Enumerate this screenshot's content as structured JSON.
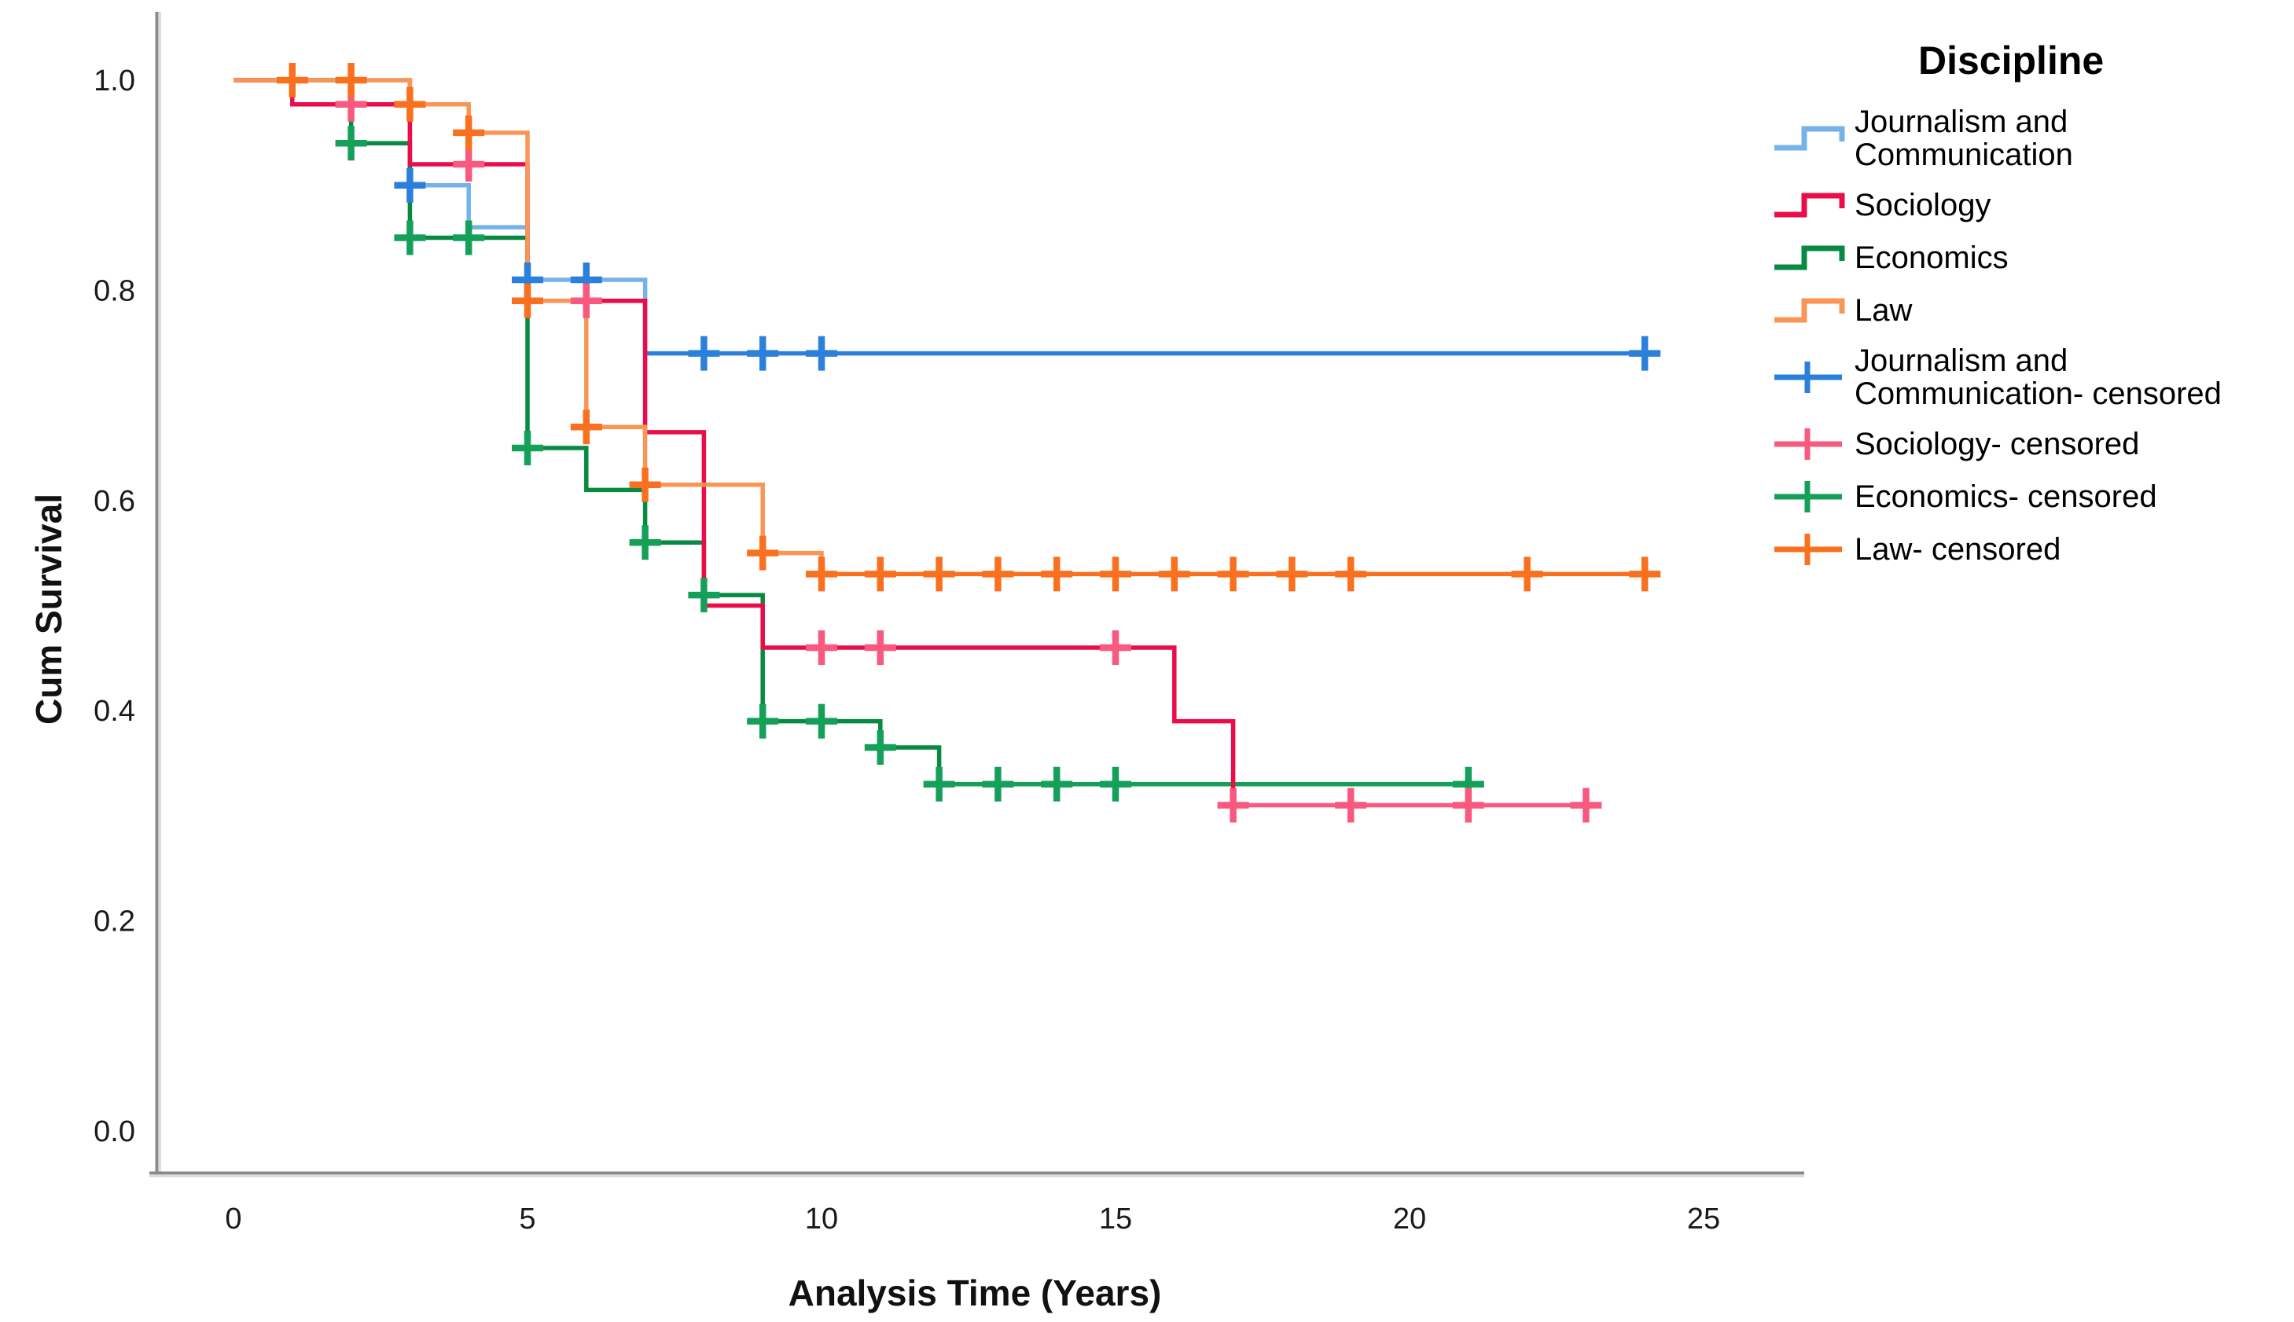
{
  "figure": {
    "legend_title": "Discipline",
    "x_axis_label": "Analysis Time (Years)",
    "y_axis_label": "Cum Survival"
  },
  "chart_data": {
    "type": "line",
    "subtype": "kaplan_meier_step",
    "title": "Discipline",
    "xlabel": "Analysis Time (Years)",
    "ylabel": "Cum Survival",
    "xlim": [
      0,
      25
    ],
    "ylim": [
      0.0,
      1.0
    ],
    "x_ticks": [
      "0",
      "5",
      "10",
      "15",
      "20",
      "25"
    ],
    "y_ticks": [
      "0.0",
      "0.2",
      "0.4",
      "0.6",
      "0.8",
      "1.0"
    ],
    "grid": false,
    "legend_position": "right",
    "series": [
      {
        "name": "Journalism and Communication",
        "line_color": "#74B2E8",
        "censor_color": "#2B80DB",
        "steps": [
          [
            0,
            1.0
          ],
          [
            3,
            0.9
          ],
          [
            4,
            0.86
          ],
          [
            5,
            0.81
          ],
          [
            7,
            0.74
          ]
        ],
        "end_time": 24.2,
        "censors": [
          [
            3,
            0.9
          ],
          [
            5,
            0.81
          ],
          [
            6,
            0.81
          ],
          [
            8,
            0.74
          ],
          [
            9,
            0.74
          ],
          [
            10,
            0.74
          ],
          [
            24,
            0.74
          ]
        ]
      },
      {
        "name": "Economics",
        "line_color": "#098A42",
        "censor_color": "#15A05A",
        "steps": [
          [
            0,
            1.0
          ],
          [
            2,
            0.94
          ],
          [
            3,
            0.85
          ],
          [
            5,
            0.65
          ],
          [
            6,
            0.61
          ],
          [
            7,
            0.56
          ],
          [
            8,
            0.51
          ],
          [
            9,
            0.39
          ],
          [
            11,
            0.365
          ],
          [
            12,
            0.33
          ]
        ],
        "end_time": 21.2,
        "censors": [
          [
            2,
            0.94
          ],
          [
            3,
            0.85
          ],
          [
            4,
            0.85
          ],
          [
            5,
            0.65
          ],
          [
            7,
            0.56
          ],
          [
            8,
            0.51
          ],
          [
            9,
            0.39
          ],
          [
            10,
            0.39
          ],
          [
            11,
            0.365
          ],
          [
            12,
            0.33
          ],
          [
            13,
            0.33
          ],
          [
            14,
            0.33
          ],
          [
            15,
            0.33
          ],
          [
            21,
            0.33
          ]
        ]
      },
      {
        "name": "Sociology",
        "line_color": "#EA0D49",
        "censor_color": "#F9587F",
        "steps": [
          [
            0,
            1.0
          ],
          [
            1,
            0.977
          ],
          [
            3,
            0.92
          ],
          [
            5,
            0.79
          ],
          [
            7,
            0.665
          ],
          [
            8,
            0.5
          ],
          [
            9,
            0.46
          ],
          [
            16,
            0.39
          ],
          [
            17,
            0.31
          ]
        ],
        "end_time": 23.2,
        "censors": [
          [
            2,
            0.977
          ],
          [
            4,
            0.92
          ],
          [
            6,
            0.79
          ],
          [
            10,
            0.46
          ],
          [
            11,
            0.46
          ],
          [
            15,
            0.46
          ],
          [
            17,
            0.31
          ],
          [
            19,
            0.31
          ],
          [
            21,
            0.31
          ],
          [
            23,
            0.31
          ]
        ]
      },
      {
        "name": "Law",
        "line_color": "#FA9558",
        "censor_color": "#F9701F",
        "steps": [
          [
            0,
            1.0
          ],
          [
            3,
            0.977
          ],
          [
            4,
            0.95
          ],
          [
            5,
            0.79
          ],
          [
            6,
            0.67
          ],
          [
            7,
            0.615
          ],
          [
            9,
            0.55
          ],
          [
            10,
            0.53
          ]
        ],
        "end_time": 24.2,
        "censors": [
          [
            1,
            1.0
          ],
          [
            2,
            1.0
          ],
          [
            3,
            0.977
          ],
          [
            4,
            0.95
          ],
          [
            5,
            0.79
          ],
          [
            6,
            0.67
          ],
          [
            7,
            0.615
          ],
          [
            9,
            0.55
          ],
          [
            10,
            0.53
          ],
          [
            11,
            0.53
          ],
          [
            12,
            0.53
          ],
          [
            13,
            0.53
          ],
          [
            14,
            0.53
          ],
          [
            15,
            0.53
          ],
          [
            16,
            0.53
          ],
          [
            17,
            0.53
          ],
          [
            18,
            0.53
          ],
          [
            19,
            0.53
          ],
          [
            22,
            0.53
          ],
          [
            24,
            0.53
          ]
        ]
      }
    ],
    "legend_entries": [
      {
        "label": "Journalism and\nCommunication",
        "type": "step",
        "color": "#74B2E8",
        "twoline": true
      },
      {
        "label": "Sociology",
        "type": "step",
        "color": "#EA0D49",
        "twoline": false
      },
      {
        "label": "Economics",
        "type": "step",
        "color": "#098A42",
        "twoline": false
      },
      {
        "label": "Law",
        "type": "step",
        "color": "#FA9558",
        "twoline": false
      },
      {
        "label": "Journalism and\nCommunication- censored",
        "type": "censored",
        "color": "#2B80DB",
        "twoline": true
      },
      {
        "label": "Sociology- censored",
        "type": "censored",
        "color": "#F9587F",
        "twoline": false
      },
      {
        "label": "Economics- censored",
        "type": "censored",
        "color": "#15A05A",
        "twoline": false
      },
      {
        "label": "Law- censored",
        "type": "censored",
        "color": "#F9701F",
        "twoline": false
      }
    ]
  }
}
